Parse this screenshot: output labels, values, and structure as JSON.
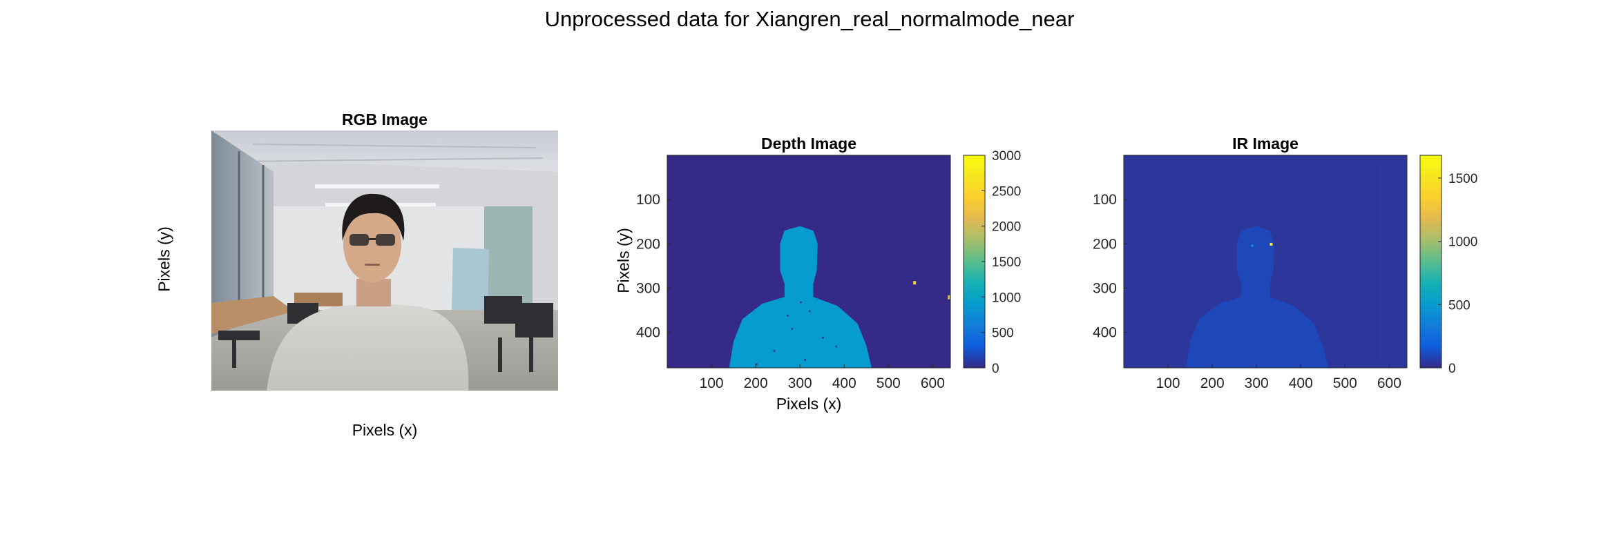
{
  "title": "Unprocessed data for Xiangren_real_normalmode_near",
  "rgb": {
    "title": "RGB Image",
    "xlabel": "Pixels (x)",
    "ylabel": "Pixels (y)"
  },
  "depth": {
    "title": "Depth Image",
    "xlabel": "Pixels (x)",
    "ylabel": "Pixels (y)"
  },
  "ir": {
    "title": "IR Image"
  },
  "chart_data": [
    {
      "type": "heatmap",
      "title": "RGB Image",
      "xlabel": "Pixels (x)",
      "ylabel": "Pixels (y)",
      "axis_ticks": "off",
      "image": "color photo of a person in a light sweater seated in an office room"
    },
    {
      "type": "heatmap",
      "title": "Depth Image",
      "xlabel": "Pixels (x)",
      "ylabel": "Pixels (y)",
      "xlim": [
        0,
        640
      ],
      "ylim": [
        0,
        480
      ],
      "y_reversed": true,
      "xticks": [
        100,
        200,
        300,
        400,
        500,
        600
      ],
      "yticks": [
        100,
        200,
        300,
        400
      ],
      "colorbar": {
        "range": [
          0,
          3000
        ],
        "ticks": [
          0,
          500,
          1000,
          1500,
          2000,
          2500,
          3000
        ],
        "colormap": "parula"
      },
      "background_value": 0,
      "person_value": 900,
      "outlier_value": 2500
    },
    {
      "type": "heatmap",
      "title": "IR Image",
      "xlabel": "",
      "ylabel": "",
      "xlim": [
        0,
        640
      ],
      "ylim": [
        0,
        480
      ],
      "y_reversed": true,
      "xticks": [
        100,
        200,
        300,
        400,
        500,
        600
      ],
      "yticks": [
        100,
        200,
        300,
        400
      ],
      "colorbar": {
        "range": [
          0,
          1680
        ],
        "ticks": [
          0,
          500,
          1000,
          1500
        ],
        "colormap": "parula"
      },
      "background_value": 40,
      "person_value": 120,
      "bright_spot_value": 1500
    }
  ]
}
